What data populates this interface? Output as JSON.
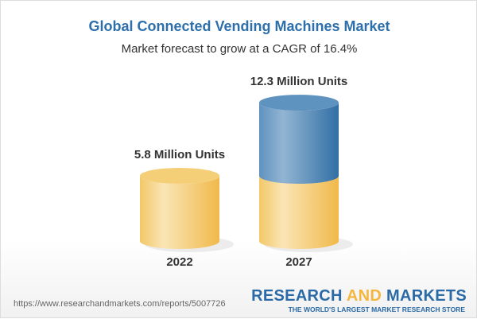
{
  "title": "Global Connected Vending Machines Market",
  "subtitle": "Market forecast to grow at a CAGR of 16.4%",
  "chart_data": {
    "type": "bar",
    "categories": [
      "2022",
      "2027"
    ],
    "values": [
      5.8,
      12.3
    ],
    "data_labels": [
      "5.8 Million Units",
      "12.3 Million Units"
    ],
    "colors": {
      "base": "#f4c35a",
      "growth": "#3f7bb0"
    }
  },
  "footer": {
    "url": "https://www.researchandmarkets.com/reports/5007726",
    "logo_part1": "RESEARCH ",
    "logo_and": "AND",
    "logo_part2": " MARKETS",
    "tagline": "THE WORLD'S LARGEST MARKET RESEARCH STORE"
  }
}
